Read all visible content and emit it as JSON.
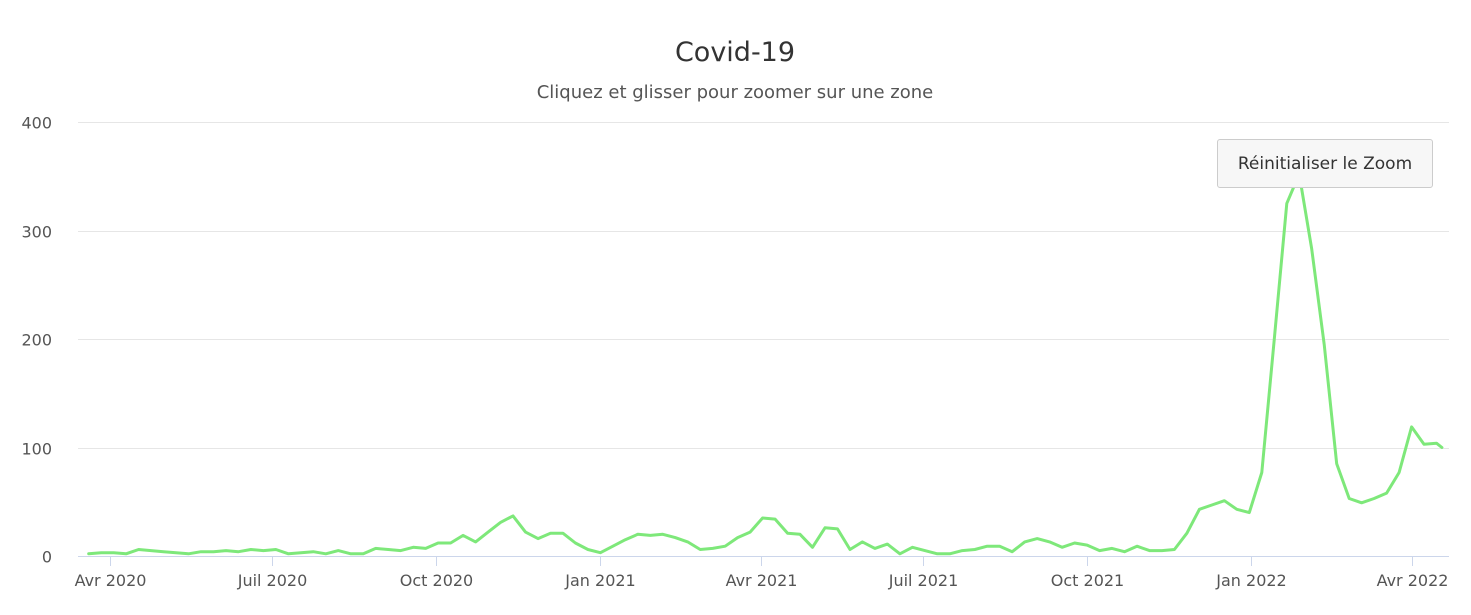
{
  "reset_zoom_label": "Réinitialiser le Zoom",
  "chart_data": {
    "type": "line",
    "title": "Covid-19",
    "subtitle": "Cliquez et glisser pour zoomer sur une zone",
    "xlabel": "",
    "ylabel": "",
    "ylim": [
      0,
      400
    ],
    "yticks": [
      0,
      100,
      200,
      300,
      400
    ],
    "xlim": [
      "2020-03-14",
      "2022-04-22"
    ],
    "xticks": [
      {
        "date": "2020-04-01",
        "label": "Avr 2020"
      },
      {
        "date": "2020-07-01",
        "label": "Juil 2020"
      },
      {
        "date": "2020-10-01",
        "label": "Oct 2020"
      },
      {
        "date": "2021-01-01",
        "label": "Jan 2021"
      },
      {
        "date": "2021-04-01",
        "label": "Avr 2021"
      },
      {
        "date": "2021-07-01",
        "label": "Juil 2021"
      },
      {
        "date": "2021-10-01",
        "label": "Oct 2021"
      },
      {
        "date": "2022-01-01",
        "label": "Jan 2022"
      },
      {
        "date": "2022-04-01",
        "label": "Avr 2022"
      }
    ],
    "grid": true,
    "legend": "none",
    "color": "#7ee87a",
    "series": [
      {
        "points": [
          [
            "2020-03-20",
            2
          ],
          [
            "2020-03-27",
            3
          ],
          [
            "2020-04-03",
            3
          ],
          [
            "2020-04-10",
            2
          ],
          [
            "2020-04-17",
            6
          ],
          [
            "2020-04-24",
            5
          ],
          [
            "2020-05-01",
            4
          ],
          [
            "2020-05-08",
            3
          ],
          [
            "2020-05-15",
            2
          ],
          [
            "2020-05-22",
            4
          ],
          [
            "2020-05-29",
            4
          ],
          [
            "2020-06-05",
            5
          ],
          [
            "2020-06-12",
            4
          ],
          [
            "2020-06-19",
            6
          ],
          [
            "2020-06-26",
            5
          ],
          [
            "2020-07-03",
            6
          ],
          [
            "2020-07-10",
            2
          ],
          [
            "2020-07-17",
            3
          ],
          [
            "2020-07-24",
            4
          ],
          [
            "2020-07-31",
            2
          ],
          [
            "2020-08-07",
            5
          ],
          [
            "2020-08-14",
            2
          ],
          [
            "2020-08-21",
            2
          ],
          [
            "2020-08-28",
            7
          ],
          [
            "2020-09-04",
            6
          ],
          [
            "2020-09-11",
            5
          ],
          [
            "2020-09-18",
            8
          ],
          [
            "2020-09-25",
            7
          ],
          [
            "2020-10-02",
            12
          ],
          [
            "2020-10-09",
            12
          ],
          [
            "2020-10-16",
            19
          ],
          [
            "2020-10-23",
            13
          ],
          [
            "2020-10-30",
            22
          ],
          [
            "2020-11-06",
            31
          ],
          [
            "2020-11-13",
            37
          ],
          [
            "2020-11-20",
            22
          ],
          [
            "2020-11-27",
            16
          ],
          [
            "2020-12-04",
            21
          ],
          [
            "2020-12-11",
            21
          ],
          [
            "2020-12-18",
            12
          ],
          [
            "2020-12-25",
            6
          ],
          [
            "2021-01-01",
            3
          ],
          [
            "2021-01-08",
            9
          ],
          [
            "2021-01-15",
            15
          ],
          [
            "2021-01-22",
            20
          ],
          [
            "2021-01-29",
            19
          ],
          [
            "2021-02-05",
            20
          ],
          [
            "2021-02-12",
            17
          ],
          [
            "2021-02-19",
            13
          ],
          [
            "2021-02-26",
            6
          ],
          [
            "2021-03-05",
            7
          ],
          [
            "2021-03-12",
            9
          ],
          [
            "2021-03-19",
            17
          ],
          [
            "2021-03-26",
            22
          ],
          [
            "2021-04-02",
            35
          ],
          [
            "2021-04-09",
            34
          ],
          [
            "2021-04-16",
            21
          ],
          [
            "2021-04-23",
            20
          ],
          [
            "2021-04-30",
            8
          ],
          [
            "2021-05-07",
            26
          ],
          [
            "2021-05-14",
            25
          ],
          [
            "2021-05-21",
            6
          ],
          [
            "2021-05-28",
            13
          ],
          [
            "2021-06-04",
            7
          ],
          [
            "2021-06-11",
            11
          ],
          [
            "2021-06-18",
            2
          ],
          [
            "2021-06-25",
            8
          ],
          [
            "2021-07-02",
            5
          ],
          [
            "2021-07-09",
            2
          ],
          [
            "2021-07-16",
            2
          ],
          [
            "2021-07-23",
            5
          ],
          [
            "2021-07-30",
            6
          ],
          [
            "2021-08-06",
            9
          ],
          [
            "2021-08-13",
            9
          ],
          [
            "2021-08-20",
            4
          ],
          [
            "2021-08-27",
            13
          ],
          [
            "2021-09-03",
            16
          ],
          [
            "2021-09-10",
            13
          ],
          [
            "2021-09-17",
            8
          ],
          [
            "2021-09-24",
            12
          ],
          [
            "2021-10-01",
            10
          ],
          [
            "2021-10-08",
            5
          ],
          [
            "2021-10-15",
            7
          ],
          [
            "2021-10-22",
            4
          ],
          [
            "2021-10-29",
            9
          ],
          [
            "2021-11-05",
            5
          ],
          [
            "2021-11-12",
            5
          ],
          [
            "2021-11-19",
            6
          ],
          [
            "2021-11-26",
            21
          ],
          [
            "2021-12-03",
            43
          ],
          [
            "2021-12-10",
            47
          ],
          [
            "2021-12-17",
            51
          ],
          [
            "2021-12-24",
            43
          ],
          [
            "2021-12-31",
            40
          ],
          [
            "2022-01-07",
            77
          ],
          [
            "2022-01-14",
            200
          ],
          [
            "2022-01-21",
            325
          ],
          [
            "2022-01-28",
            352
          ],
          [
            "2022-02-04",
            283
          ],
          [
            "2022-02-11",
            195
          ],
          [
            "2022-02-18",
            85
          ],
          [
            "2022-02-25",
            53
          ],
          [
            "2022-03-04",
            49
          ],
          [
            "2022-03-11",
            53
          ],
          [
            "2022-03-18",
            58
          ],
          [
            "2022-03-25",
            77
          ],
          [
            "2022-04-01",
            119
          ],
          [
            "2022-04-08",
            103
          ],
          [
            "2022-04-15",
            104
          ],
          [
            "2022-04-18",
            100
          ]
        ]
      }
    ]
  }
}
